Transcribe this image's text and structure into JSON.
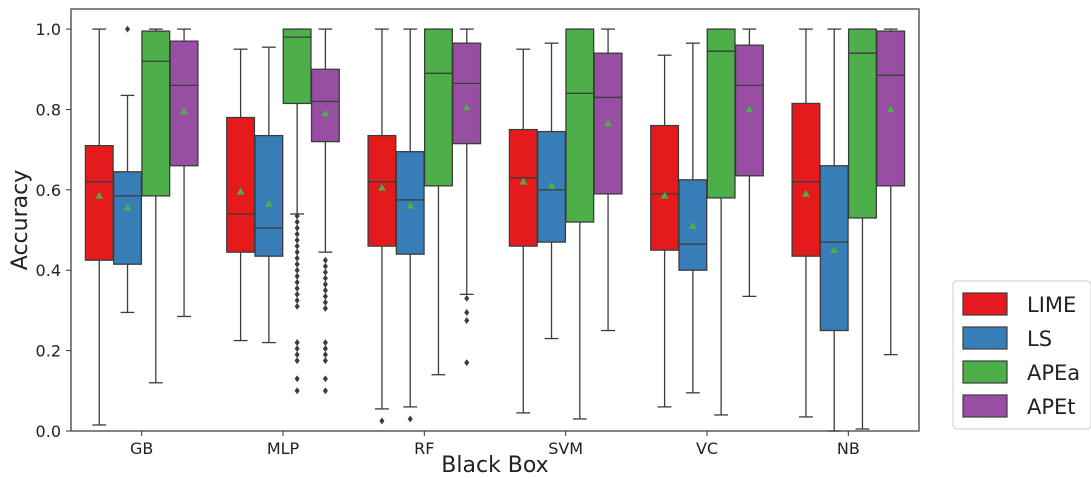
{
  "chart_data": {
    "type": "box",
    "xlabel": "Black Box",
    "ylabel": "Accuracy",
    "ylim": [
      0.0,
      1.05
    ],
    "yticks": [
      0.0,
      0.2,
      0.4,
      0.6,
      0.8,
      1.0
    ],
    "ytick_labels": [
      "0.0",
      "0.2",
      "0.4",
      "0.6",
      "0.8",
      "1.0"
    ],
    "categories": [
      "GB",
      "MLP",
      "RF",
      "SVM",
      "VC",
      "NB"
    ],
    "legend": {
      "placement": "right"
    },
    "grid": false,
    "mean_marker_color": "#4daf4a",
    "series": [
      {
        "name": "LIME",
        "color": "#e41a1c",
        "boxes": [
          {
            "whislo": 0.015,
            "q1": 0.425,
            "med": 0.62,
            "q3": 0.71,
            "whishi": 1.0,
            "mean": 0.585,
            "fliers": []
          },
          {
            "whislo": 0.225,
            "q1": 0.445,
            "med": 0.54,
            "q3": 0.78,
            "whishi": 0.95,
            "mean": 0.595,
            "fliers": []
          },
          {
            "whislo": 0.055,
            "q1": 0.46,
            "med": 0.62,
            "q3": 0.735,
            "whishi": 1.0,
            "mean": 0.605,
            "fliers": [
              0.025
            ]
          },
          {
            "whislo": 0.045,
            "q1": 0.46,
            "med": 0.63,
            "q3": 0.75,
            "whishi": 0.95,
            "mean": 0.62,
            "fliers": []
          },
          {
            "whislo": 0.06,
            "q1": 0.45,
            "med": 0.59,
            "q3": 0.76,
            "whishi": 0.935,
            "mean": 0.585,
            "fliers": []
          },
          {
            "whislo": 0.035,
            "q1": 0.435,
            "med": 0.62,
            "q3": 0.815,
            "whishi": 1.0,
            "mean": 0.59,
            "fliers": []
          }
        ]
      },
      {
        "name": "LS",
        "color": "#377eb8",
        "boxes": [
          {
            "whislo": 0.295,
            "q1": 0.415,
            "med": 0.585,
            "q3": 0.645,
            "whishi": 0.835,
            "mean": 0.555,
            "fliers": [
              1.0
            ]
          },
          {
            "whislo": 0.22,
            "q1": 0.435,
            "med": 0.505,
            "q3": 0.735,
            "whishi": 0.955,
            "mean": 0.565,
            "fliers": []
          },
          {
            "whislo": 0.06,
            "q1": 0.44,
            "med": 0.575,
            "q3": 0.695,
            "whishi": 1.0,
            "mean": 0.56,
            "fliers": [
              0.03
            ]
          },
          {
            "whislo": 0.23,
            "q1": 0.47,
            "med": 0.6,
            "q3": 0.745,
            "whishi": 0.965,
            "mean": 0.61,
            "fliers": []
          },
          {
            "whislo": 0.095,
            "q1": 0.4,
            "med": 0.465,
            "q3": 0.625,
            "whishi": 0.965,
            "mean": 0.51,
            "fliers": []
          },
          {
            "whislo": 0.0,
            "q1": 0.25,
            "med": 0.47,
            "q3": 0.66,
            "whishi": 1.0,
            "mean": 0.45,
            "fliers": []
          }
        ]
      },
      {
        "name": "APEa",
        "color": "#4daf4a",
        "boxes": [
          {
            "whislo": 0.12,
            "q1": 0.585,
            "med": 0.92,
            "q3": 0.995,
            "whishi": 1.0,
            "mean": 0.79,
            "fliers": []
          },
          {
            "whislo": 0.54,
            "q1": 0.815,
            "med": 0.98,
            "q3": 1.0,
            "whishi": 1.0,
            "mean": 0.855,
            "fliers": [
              0.535,
              0.52,
              0.505,
              0.49,
              0.475,
              0.46,
              0.445,
              0.43,
              0.415,
              0.4,
              0.385,
              0.37,
              0.355,
              0.34,
              0.325,
              0.31,
              0.22,
              0.205,
              0.19,
              0.175,
              0.13,
              0.1
            ]
          },
          {
            "whislo": 0.14,
            "q1": 0.61,
            "med": 0.89,
            "q3": 1.0,
            "whishi": 1.0,
            "mean": 0.79,
            "fliers": []
          },
          {
            "whislo": 0.03,
            "q1": 0.52,
            "med": 0.84,
            "q3": 1.0,
            "whishi": 1.0,
            "mean": 0.755,
            "fliers": []
          },
          {
            "whislo": 0.04,
            "q1": 0.58,
            "med": 0.945,
            "q3": 1.0,
            "whishi": 1.0,
            "mean": 0.79,
            "fliers": []
          },
          {
            "whislo": 0.005,
            "q1": 0.53,
            "med": 0.94,
            "q3": 1.0,
            "whishi": 1.0,
            "mean": 0.765,
            "fliers": []
          }
        ]
      },
      {
        "name": "APEt",
        "color": "#984ea3",
        "boxes": [
          {
            "whislo": 0.285,
            "q1": 0.66,
            "med": 0.86,
            "q3": 0.97,
            "whishi": 1.0,
            "mean": 0.795,
            "fliers": []
          },
          {
            "whislo": 0.445,
            "q1": 0.72,
            "med": 0.82,
            "q3": 0.9,
            "whishi": 1.0,
            "mean": 0.79,
            "fliers": [
              0.425,
              0.41,
              0.395,
              0.38,
              0.365,
              0.35,
              0.335,
              0.32,
              0.305,
              0.22,
              0.205,
              0.19,
              0.175,
              0.13,
              0.1
            ]
          },
          {
            "whislo": 0.34,
            "q1": 0.715,
            "med": 0.865,
            "q3": 0.965,
            "whishi": 1.0,
            "mean": 0.805,
            "fliers": [
              0.33,
              0.295,
              0.275,
              0.17
            ]
          },
          {
            "whislo": 0.25,
            "q1": 0.59,
            "med": 0.83,
            "q3": 0.94,
            "whishi": 1.0,
            "mean": 0.765,
            "fliers": []
          },
          {
            "whislo": 0.335,
            "q1": 0.635,
            "med": 0.86,
            "q3": 0.96,
            "whishi": 1.0,
            "mean": 0.8,
            "fliers": []
          },
          {
            "whislo": 0.19,
            "q1": 0.61,
            "med": 0.885,
            "q3": 0.995,
            "whishi": 1.0,
            "mean": 0.8,
            "fliers": []
          }
        ]
      }
    ]
  }
}
